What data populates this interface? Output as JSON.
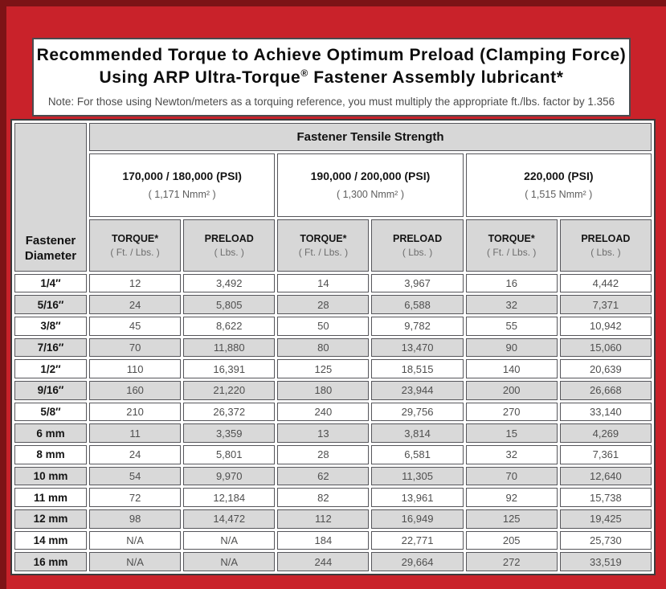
{
  "frame": {
    "background_color": "#c9222a",
    "edge_color": "#7d1316",
    "panel_border_color": "#4a4b4f",
    "header_fill_color": "#d7d7d7",
    "shaded_row_color": "#d9d9d9"
  },
  "title": {
    "line1": "Recommended Torque to Achieve Optimum Preload (Clamping Force)",
    "line2_pre": "Using ARP Ultra-Torque",
    "line2_sup": "®",
    "line2_post": " Fastener Assembly lubricant*",
    "note": "Note: For those using Newton/meters as a torquing reference, you must multiply the appropriate ft./lbs. factor by 1.356"
  },
  "table": {
    "corner_header_line1": "Fastener",
    "corner_header_line2": "Diameter",
    "main_header": "Fastener Tensile Strength",
    "groups": [
      {
        "psi": "170,000 / 180,000 (PSI)",
        "nmm": "( 1,171 Nmm² )"
      },
      {
        "psi": "190,000 / 200,000 (PSI)",
        "nmm": "( 1,300 Nmm² )"
      },
      {
        "psi": "220,000 (PSI)",
        "nmm": "( 1,515 Nmm² )"
      }
    ],
    "sub_headers": {
      "torque_label": "TORQUE*",
      "torque_unit": "( Ft. / Lbs. )",
      "preload_label": "PRELOAD",
      "preload_unit": "( Lbs. )"
    },
    "rows": [
      {
        "diameter": "1/4″",
        "values": [
          "12",
          "3,492",
          "14",
          "3,967",
          "16",
          "4,442"
        ]
      },
      {
        "diameter": "5/16″",
        "values": [
          "24",
          "5,805",
          "28",
          "6,588",
          "32",
          "7,371"
        ]
      },
      {
        "diameter": "3/8″",
        "values": [
          "45",
          "8,622",
          "50",
          "9,782",
          "55",
          "10,942"
        ]
      },
      {
        "diameter": "7/16″",
        "values": [
          "70",
          "11,880",
          "80",
          "13,470",
          "90",
          "15,060"
        ]
      },
      {
        "diameter": "1/2″",
        "values": [
          "110",
          "16,391",
          "125",
          "18,515",
          "140",
          "20,639"
        ]
      },
      {
        "diameter": "9/16″",
        "values": [
          "160",
          "21,220",
          "180",
          "23,944",
          "200",
          "26,668"
        ]
      },
      {
        "diameter": "5/8″",
        "values": [
          "210",
          "26,372",
          "240",
          "29,756",
          "270",
          "33,140"
        ]
      },
      {
        "diameter": "6 mm",
        "values": [
          "11",
          "3,359",
          "13",
          "3,814",
          "15",
          "4,269"
        ]
      },
      {
        "diameter": "8 mm",
        "values": [
          "24",
          "5,801",
          "28",
          "6,581",
          "32",
          "7,361"
        ]
      },
      {
        "diameter": "10 mm",
        "values": [
          "54",
          "9,970",
          "62",
          "11,305",
          "70",
          "12,640"
        ]
      },
      {
        "diameter": "11 mm",
        "values": [
          "72",
          "12,184",
          "82",
          "13,961",
          "92",
          "15,738"
        ]
      },
      {
        "diameter": "12 mm",
        "values": [
          "98",
          "14,472",
          "112",
          "16,949",
          "125",
          "19,425"
        ]
      },
      {
        "diameter": "14 mm",
        "values": [
          "N/A",
          "N/A",
          "184",
          "22,771",
          "205",
          "25,730"
        ]
      },
      {
        "diameter": "16 mm",
        "values": [
          "N/A",
          "N/A",
          "244",
          "29,664",
          "272",
          "33,519"
        ]
      }
    ]
  }
}
